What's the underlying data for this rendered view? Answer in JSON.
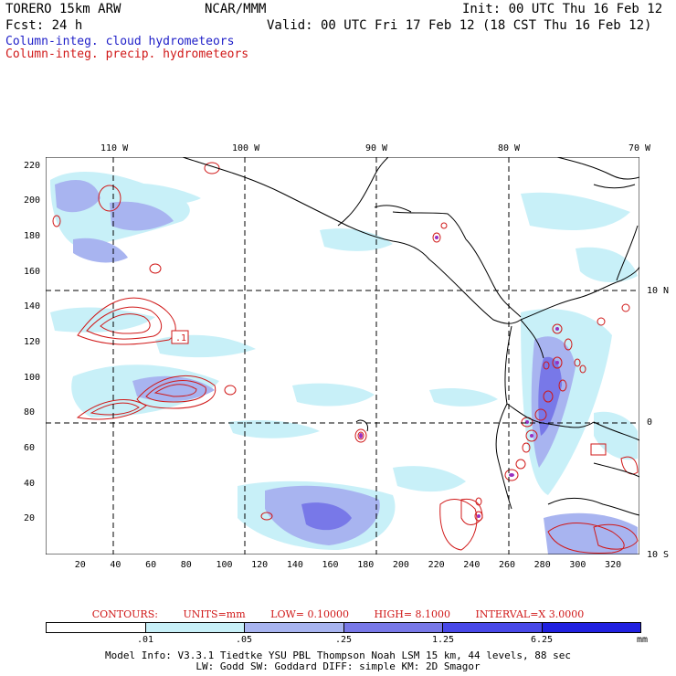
{
  "header": {
    "model": "TORERO  15km ARW",
    "org": "NCAR/MMM",
    "init": "Init: 00 UTC Thu 16 Feb 12",
    "fcst": "Fcst:   24 h",
    "valid": "Valid: 00 UTC Fri 17 Feb 12 (18 CST Thu 16 Feb 12)",
    "field_cloud": "Column-integ. cloud hydrometeors",
    "field_precip": "Column-integ. precip. hydrometeors"
  },
  "map": {
    "lon_labels": [
      "110 W",
      "100 W",
      "90 W",
      "80 W",
      "70 W"
    ],
    "lat_labels": [
      "10 N",
      "0",
      "10 S"
    ],
    "grid_x_labels": [
      "20",
      "40",
      "60",
      "80",
      "100",
      "120",
      "140",
      "160",
      "180",
      "200",
      "220",
      "240",
      "260",
      "280",
      "300",
      "320"
    ],
    "grid_y_labels": [
      "20",
      "40",
      "60",
      "80",
      "100",
      "120",
      "140",
      "160",
      "180",
      "200",
      "220"
    ],
    "contour_box_label": ".1",
    "colors": {
      "cloud_light": "#c8f0f8",
      "cloud_mid": "#a8b4f0",
      "cloud_dark": "#7878e8",
      "precip": "#d01818",
      "coast": "#000000"
    }
  },
  "contours": {
    "title": "CONTOURS:",
    "units": "UNITS=mm",
    "low": "LOW= 0.10000",
    "high": "HIGH=  8.1000",
    "interval": "INTERVAL=X  3.0000"
  },
  "colorbar": {
    "labels": [
      ".01",
      ".05",
      ".25",
      "1.25",
      "6.25"
    ],
    "unit": "mm",
    "colors": [
      "#ffffff",
      "#c8f0f8",
      "#a8b4f0",
      "#7878e8",
      "#4848e8",
      "#2020e0"
    ]
  },
  "model_info": {
    "line1": "Model Info: V3.3.1   Tiedtke YSU PBL  Thompson    Noah LSM  15 km,   44 levels,   88 sec",
    "line2": "LW: Godd SW: Goddard DIFF: simple KM: 2D Smagor"
  }
}
